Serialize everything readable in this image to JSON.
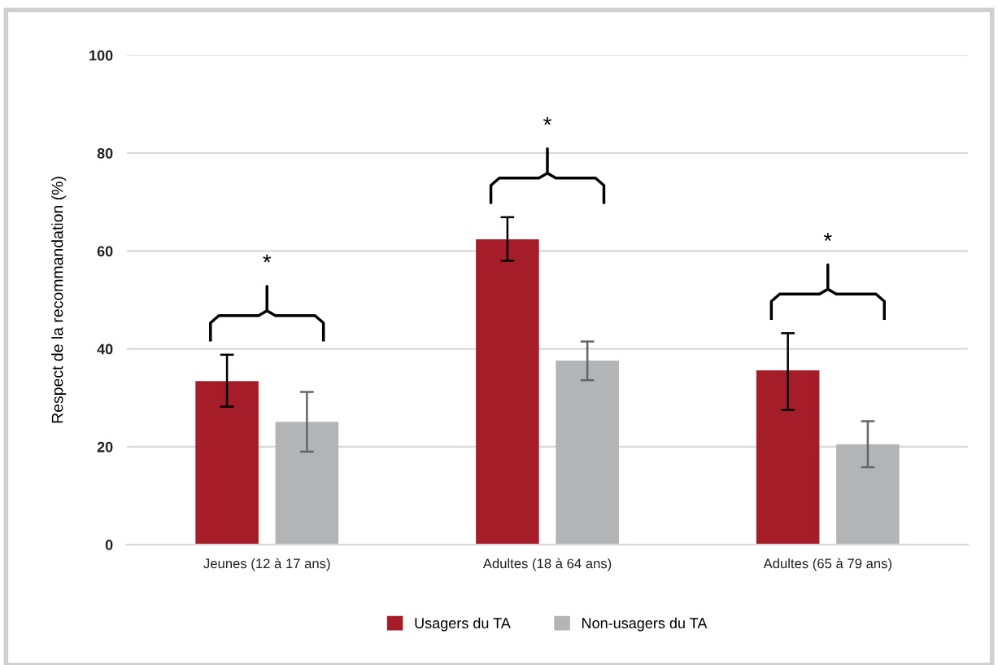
{
  "chart_data": {
    "type": "bar",
    "ylabel": "Respect de la recommandation (%)",
    "categories": [
      "Jeunes (12 à 17 ans)",
      "Adultes (18 à 64 ans)",
      "Adultes (65 à 79 ans)"
    ],
    "series": [
      {
        "name": "Usagers du TA",
        "color": "#a51d29",
        "values": [
          33.4,
          62.4,
          35.6
        ],
        "errors": [
          [
            28.2,
            38.8
          ],
          [
            58.0,
            66.9
          ],
          [
            27.5,
            43.2
          ]
        ]
      },
      {
        "name": "Non-usagers du TA",
        "color": "#b3b4b5",
        "values": [
          25.1,
          37.6,
          20.5
        ],
        "errors": [
          [
            19.0,
            31.2
          ],
          [
            33.6,
            41.5
          ],
          [
            15.8,
            25.2
          ]
        ]
      }
    ],
    "ylim": [
      0,
      100
    ],
    "yticks": [
      0,
      20,
      40,
      60,
      80,
      100
    ],
    "grid": "y",
    "legend": "bottom",
    "annotations": [
      "*",
      "*",
      "*"
    ]
  }
}
